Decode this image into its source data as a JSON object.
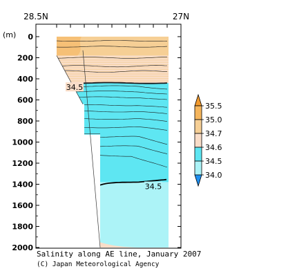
{
  "chart_data": {
    "type": "heatmap",
    "title": "Salinity along AE line, January 2007",
    "credit": "(C) Japan Meteorological Agency",
    "x_top_labels": [
      "28.5N",
      "27N"
    ],
    "ylabel": "(m)",
    "ylim": [
      0,
      2000
    ],
    "y_reversed": true,
    "y_ticks": [
      0,
      200,
      400,
      600,
      800,
      1000,
      1200,
      1400,
      1600,
      1800,
      2000
    ],
    "colorbar": {
      "levels": [
        "35.5",
        "35.0",
        "34.7",
        "34.6",
        "34.5",
        "34.0"
      ],
      "colors": {
        "above_35_5": "#f29a2e",
        "c35_0_35_5": "#f5b55c",
        "c34_7_35_0": "#f6cf95",
        "c34_6_34_7": "#f9ddc8",
        "c34_5_34_6": "#5ee6f2",
        "c34_0_34_5": "#acf3f7",
        "below_34_0": "#1e8ff0"
      }
    },
    "contour_labels": [
      {
        "value": "34.5",
        "depth_m": 480
      },
      {
        "value": "34.5",
        "depth_m": 1420
      }
    ],
    "layers": [
      {
        "range": "34.7-35.0",
        "depth_m": [
          0,
          180
        ]
      },
      {
        "range": "34.6-34.7",
        "depth_m": [
          180,
          440
        ]
      },
      {
        "range": "34.5-34.6",
        "depth_m": [
          440,
          1380
        ]
      },
      {
        "range": "34.0-34.5",
        "depth_m": [
          1380,
          2000
        ]
      }
    ]
  }
}
